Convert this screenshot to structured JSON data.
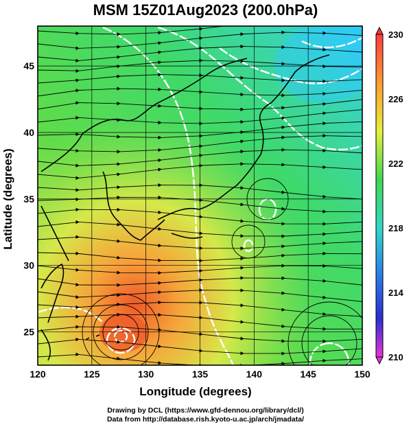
{
  "title": "MSM 15Z01Aug2023 (200.0hPa)",
  "x_axis": {
    "label": "Longitude (degrees)",
    "ticks": [
      "120",
      "125",
      "130",
      "135",
      "140",
      "145",
      "150"
    ]
  },
  "y_axis": {
    "label": "Latitude  (degrees)",
    "ticks": [
      "25",
      "30",
      "35",
      "40",
      "45"
    ]
  },
  "colorbar": {
    "ticks": [
      "230",
      "226",
      "222",
      "218",
      "214",
      "210"
    ],
    "min": 210,
    "max": 230
  },
  "credits": {
    "line1": "Drawing by DCL (https://www.gfd-dennou.org/library/dcl/)",
    "line2": "Data from http://database.rish.kyoto-u.ac.jp/arch/jmadata/"
  },
  "map": {
    "lon_range": [
      120,
      150
    ],
    "lat_range": [
      22.5,
      48
    ],
    "grid": true,
    "colors": {
      "cold": "#2fc9ff",
      "mid": "#3fd94f",
      "warm": "#f2e04a",
      "hot": "#ef5a2a"
    }
  }
}
